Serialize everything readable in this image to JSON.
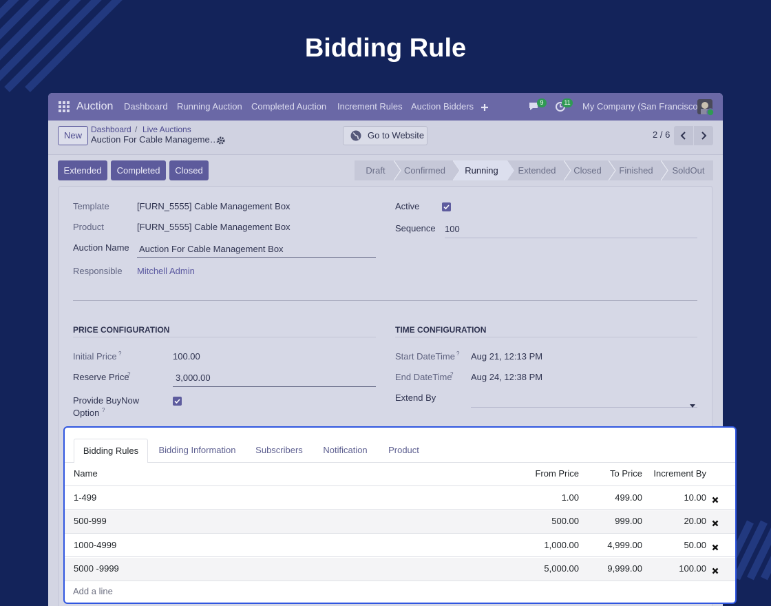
{
  "title": "Bidding Rule",
  "navbar": {
    "app": "Auction",
    "menu": [
      "Dashboard",
      "Running Auction",
      "Completed Auction",
      "Increment Rules",
      "Auction Bidders"
    ],
    "messages_badge": "9",
    "activity_badge": "11",
    "company": "My Company (San Francisco)"
  },
  "control_panel": {
    "new_button": "New",
    "breadcrumb": [
      "Dashboard",
      "Live Auctions"
    ],
    "breadcrumb_separator": "/",
    "record": "Auction For Cable Manageme…",
    "website_button": "Go to Website",
    "pager": "2 / 6"
  },
  "status_buttons": [
    "Extended",
    "Completed",
    "Closed"
  ],
  "stages": [
    "Draft",
    "Confirmed",
    "Running",
    "Extended",
    "Closed",
    "Finished",
    "SoldOut"
  ],
  "active_stage": "Running",
  "help_marker": "?",
  "form": {
    "template": {
      "label": "Template",
      "value": "[FURN_5555] Cable Management Box"
    },
    "product": {
      "label": "Product",
      "value": "[FURN_5555] Cable Management Box"
    },
    "auction_name": {
      "label": "Auction Name",
      "value": "Auction For Cable Management Box"
    },
    "responsible": {
      "label": "Responsible",
      "value": "Mitchell Admin"
    },
    "active": {
      "label": "Active"
    },
    "sequence": {
      "label": "Sequence",
      "value": "100"
    }
  },
  "price_configuration": {
    "heading": "PRICE CONFIGURATION",
    "initial_price": {
      "label": "Initial Price",
      "value": "100.00"
    },
    "reserve_price": {
      "label": "Reserve Price",
      "value": "3,000.00"
    },
    "buy_now": {
      "label": [
        "Provide BuyNow",
        "Option"
      ]
    }
  },
  "time_configuration": {
    "heading": "TIME CONFIGURATION",
    "start": {
      "label": "Start DateTime",
      "value": "Aug 21, 12:13 PM"
    },
    "end": {
      "label": "End DateTime",
      "value": "Aug 24, 12:38 PM"
    },
    "extend_by": {
      "label": "Extend By"
    }
  },
  "tabs": [
    "Bidding Rules",
    "Bidding Information",
    "Subscribers",
    "Notification",
    "Product"
  ],
  "table": {
    "columns": [
      "Name",
      "From Price",
      "To Price",
      "Increment By"
    ],
    "rows": [
      [
        "1-499",
        "1.00",
        "499.00",
        "10.00"
      ],
      [
        "500-999",
        "500.00",
        "999.00",
        "20.00"
      ],
      [
        "1000-4999",
        "1,000.00",
        "4,999.00",
        "50.00"
      ],
      [
        "5000 -9999",
        "5,000.00",
        "9,999.00",
        "100.00"
      ]
    ],
    "add_line": "Add a line"
  }
}
